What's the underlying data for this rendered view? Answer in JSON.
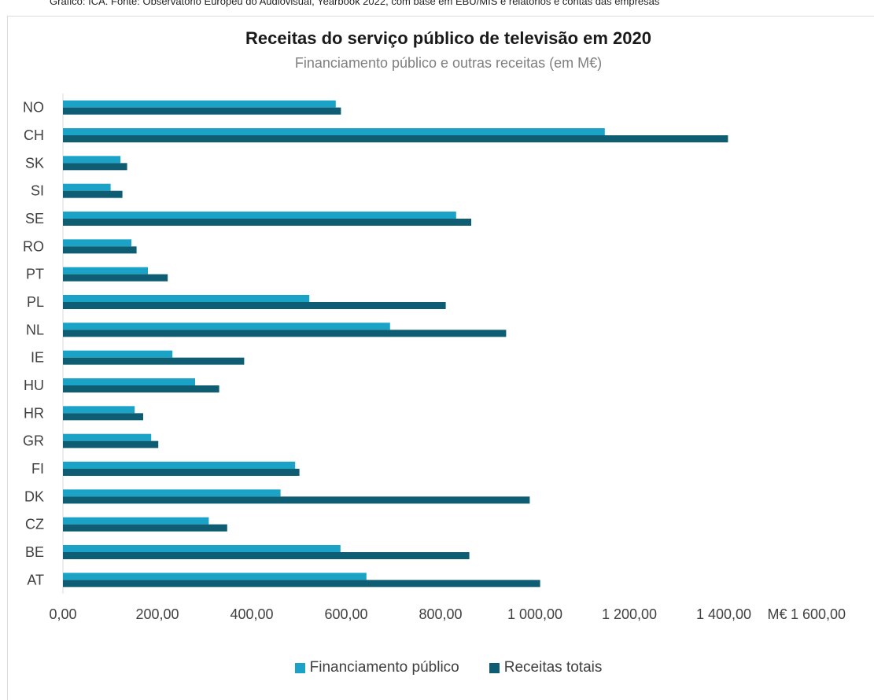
{
  "source_note": "Gráfico: ICA. Fonte: Observatório Europeu do Audiovisual, Yearbook 2022, com base em EBU/MIS e relatórios e contas das empresas",
  "chart_data": {
    "type": "bar",
    "orientation": "horizontal",
    "title": "Receitas do serviço público de televisão em 2020",
    "subtitle": "Financiamento público e outras receitas (em M€)",
    "xlabel": "M€",
    "ylabel": "",
    "xlim": [
      0,
      1600
    ],
    "x_ticks": [
      "0,00",
      "200,00",
      "400,00",
      "600,00",
      "800,00",
      "1 000,00",
      "1 200,00",
      "1 400,00",
      "1 600,00"
    ],
    "grid": false,
    "legend_position": "bottom",
    "categories": [
      "NO",
      "CH",
      "SK",
      "SI",
      "SE",
      "RO",
      "PT",
      "PL",
      "NL",
      "IE",
      "HU",
      "HR",
      "GR",
      "FI",
      "DK",
      "CZ",
      "BE",
      "AT"
    ],
    "series": [
      {
        "name": "Financiamento público",
        "color": "#1aa3c6",
        "values": [
          578,
          1148,
          122,
          101,
          833,
          145,
          180,
          522,
          693,
          232,
          280,
          152,
          187,
          492,
          461,
          309,
          588,
          643
        ]
      },
      {
        "name": "Receitas totais",
        "color": "#0e5d73",
        "values": [
          589,
          1409,
          136,
          126,
          865,
          156,
          222,
          811,
          939,
          384,
          331,
          170,
          202,
          501,
          989,
          348,
          861,
          1011
        ]
      }
    ]
  }
}
